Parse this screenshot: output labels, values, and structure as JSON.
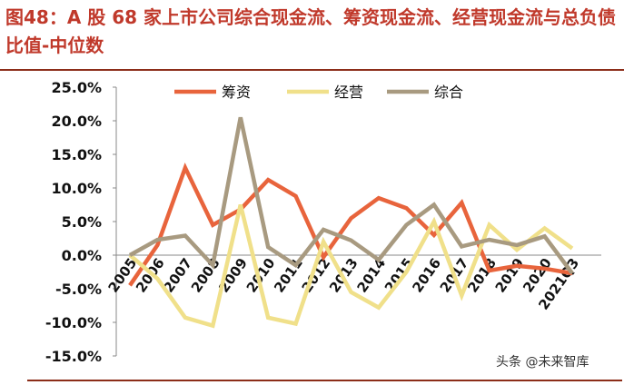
{
  "header": {
    "title": "图48：A 股 68 家上市公司综合现金流、筹资现金流、经营现金流与总负债比值-中位数"
  },
  "watermark": {
    "text": "头条 @未来智库"
  },
  "chart_data": {
    "type": "line",
    "title": "",
    "xlabel": "",
    "ylabel": "",
    "categories": [
      "2005",
      "2006",
      "2007",
      "2008",
      "2009",
      "2010",
      "2011",
      "2012",
      "2013",
      "2014",
      "2015",
      "2016",
      "2017",
      "2018",
      "2019",
      "2020",
      "2021Q3"
    ],
    "y_ticks": [
      "25.0%",
      "20.0%",
      "15.0%",
      "10.0%",
      "5.0%",
      "0.0%",
      "-5.0%",
      "-10.0%",
      "-15.0%"
    ],
    "ylim": [
      -15,
      25
    ],
    "legend_position": "top",
    "grid": false,
    "series": [
      {
        "name": "筹资",
        "color": "#e8643c",
        "values": [
          -4.5,
          1.5,
          13.0,
          4.5,
          6.8,
          11.2,
          8.8,
          -0.3,
          5.5,
          8.5,
          7.0,
          3.0,
          7.8,
          -2.3,
          -1.6,
          -2.0,
          -2.7
        ]
      },
      {
        "name": "经营",
        "color": "#f0e08a",
        "values": [
          0.0,
          -3.5,
          -9.3,
          -10.5,
          7.5,
          -9.3,
          -10.2,
          2.0,
          -5.5,
          -7.8,
          -2.5,
          5.0,
          -6.0,
          4.5,
          0.8,
          4.0,
          1.0
        ]
      },
      {
        "name": "综合",
        "color": "#a89a80",
        "values": [
          0.0,
          2.3,
          2.9,
          -1.5,
          20.5,
          1.2,
          -1.5,
          3.8,
          2.2,
          -0.7,
          4.5,
          7.5,
          1.3,
          2.3,
          1.5,
          2.8,
          -2.7
        ]
      }
    ]
  }
}
